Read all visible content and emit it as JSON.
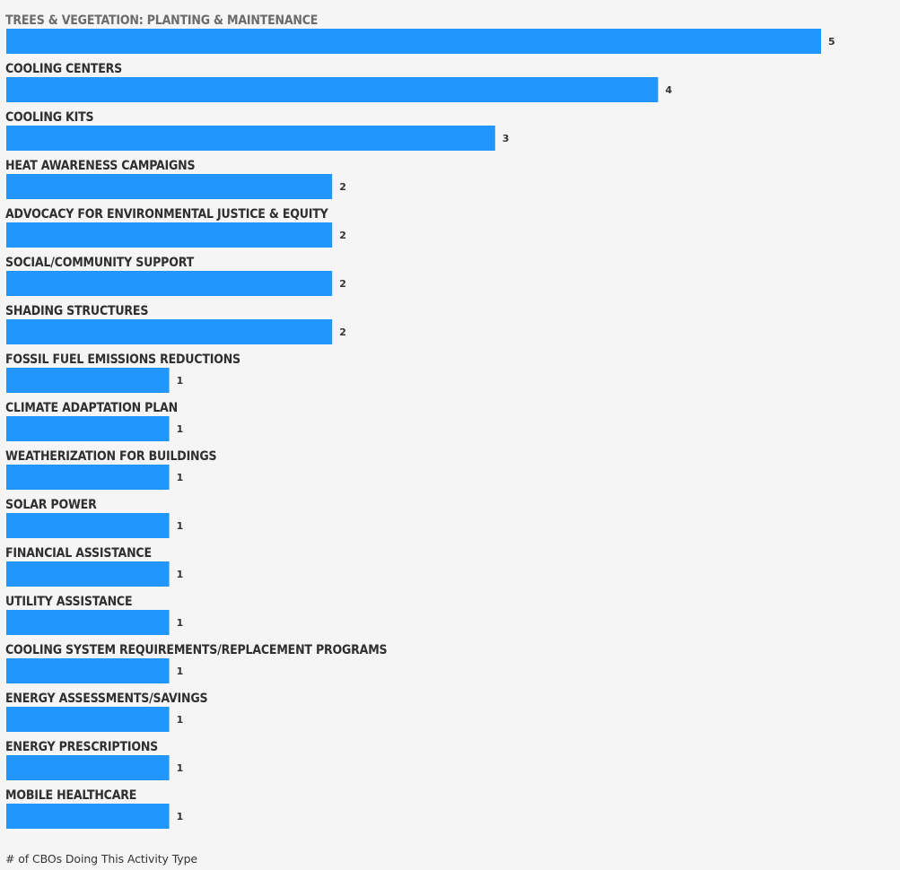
{
  "chart_data": {
    "type": "bar",
    "orientation": "horizontal",
    "categories": [
      "TREES & VEGETATION: PLANTING & MAINTENANCE",
      "COOLING CENTERS",
      "COOLING KITS",
      "HEAT AWARENESS CAMPAIGNS",
      "ADVOCACY FOR ENVIRONMENTAL JUSTICE & EQUITY",
      "SOCIAL/COMMUNITY SUPPORT",
      "SHADING STRUCTURES",
      "FOSSIL FUEL EMISSIONS REDUCTIONS",
      "CLIMATE ADAPTATION PLAN",
      "WEATHERIZATION FOR BUILDINGS",
      "SOLAR POWER",
      "FINANCIAL ASSISTANCE",
      "UTILITY ASSISTANCE",
      "COOLING SYSTEM REQUIREMENTS/REPLACEMENT PROGRAMS",
      "ENERGY ASSESSMENTS/SAVINGS",
      "ENERGY PRESCRIPTIONS",
      "MOBILE HEALTHCARE"
    ],
    "values": [
      5,
      4,
      3,
      2,
      2,
      2,
      2,
      1,
      1,
      1,
      1,
      1,
      1,
      1,
      1,
      1,
      1
    ],
    "xlabel": "# of CBOs Doing This Activity Type",
    "ylabel": "",
    "title": "",
    "xlim": [
      0,
      5
    ],
    "grid": false,
    "bar_color": "#2196fc",
    "background_color": "#f5f5f5",
    "label_position": "above-bar",
    "value_label_position": "end-of-bar"
  }
}
